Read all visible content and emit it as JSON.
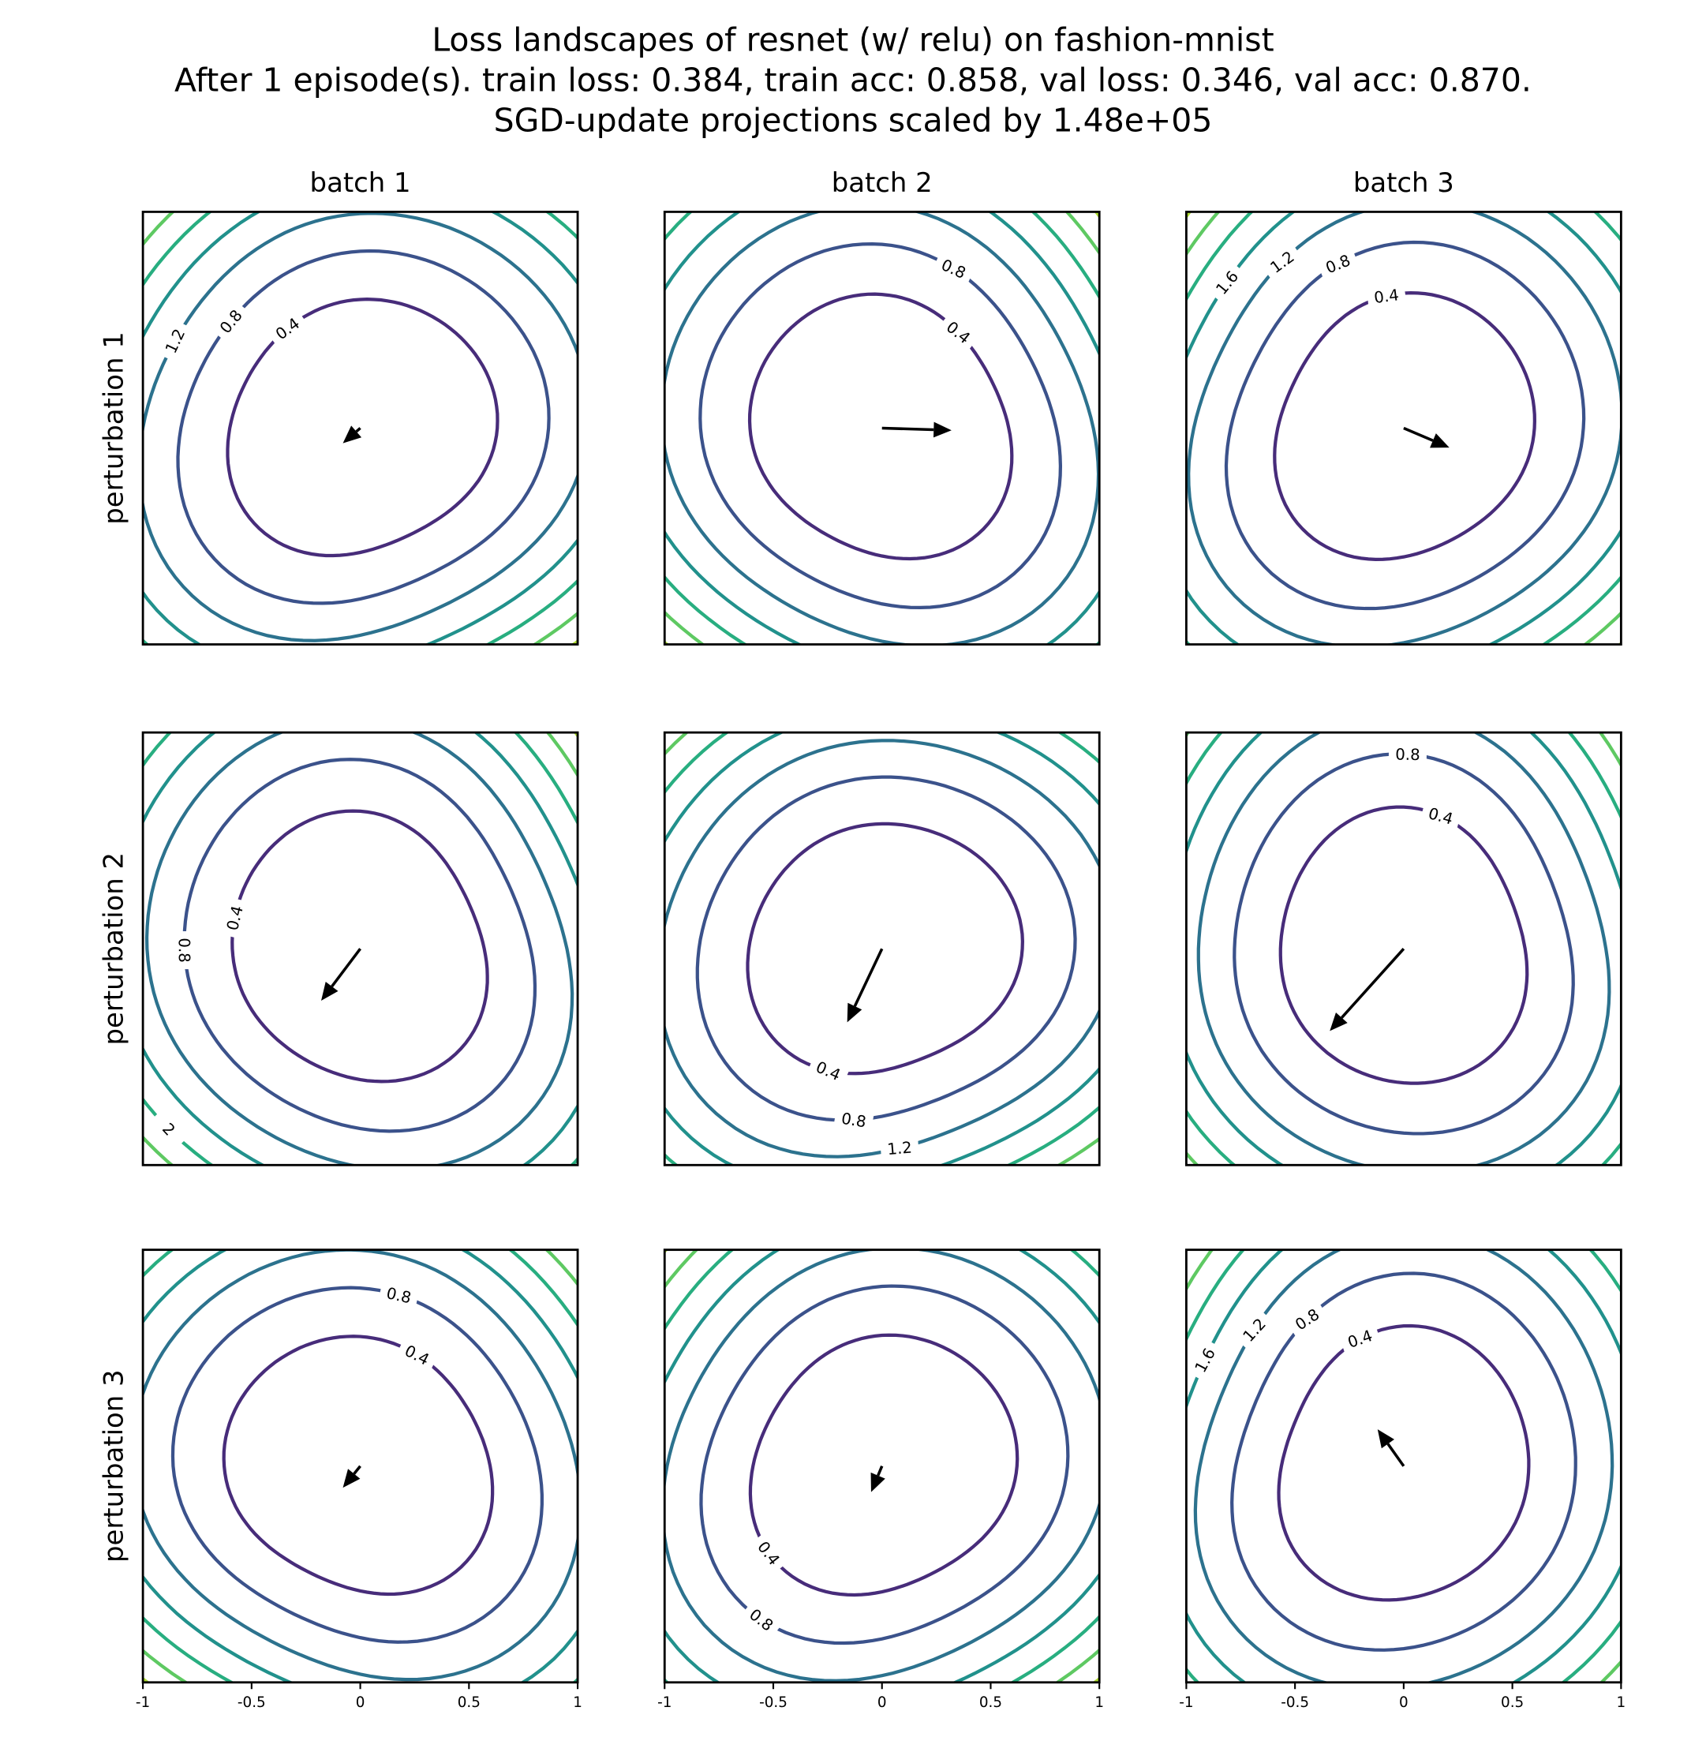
{
  "chart_data": {
    "type": "contour",
    "title": [
      "Loss landscapes of resnet (w/ relu) on fashion-mnist",
      "After 1 episode(s). train loss: 0.384, train acc: 0.858, val loss: 0.346, val acc: 0.870.",
      "SGD-update projections scaled by 1.48e+05"
    ],
    "columns": [
      "batch 1",
      "batch 2",
      "batch 3"
    ],
    "rows": [
      "perturbation 1",
      "perturbation 2",
      "perturbation 3"
    ],
    "xlim": [
      -1,
      1
    ],
    "ylim": [
      -1,
      1
    ],
    "xticks": [
      -1,
      -0.5,
      0,
      0.5,
      1
    ],
    "levels": [
      0.4,
      0.8,
      1.2,
      1.6,
      2.0,
      2.4,
      2.8
    ],
    "level_colors": [
      "#472c7a",
      "#3b528b",
      "#2c728e",
      "#21918c",
      "#28ae80",
      "#5ec962",
      "#addc30"
    ],
    "arrow_color": "#000000",
    "panels": [
      {
        "arrow_dx": -0.08,
        "arrow_dy": -0.07
      },
      {
        "arrow_dx": 0.32,
        "arrow_dy": -0.01
      },
      {
        "arrow_dx": 0.21,
        "arrow_dy": -0.09
      },
      {
        "arrow_dx": -0.18,
        "arrow_dy": -0.24
      },
      {
        "arrow_dx": -0.16,
        "arrow_dy": -0.34
      },
      {
        "arrow_dx": -0.34,
        "arrow_dy": -0.38
      },
      {
        "arrow_dx": -0.08,
        "arrow_dy": -0.1
      },
      {
        "arrow_dx": -0.05,
        "arrow_dy": -0.12
      },
      {
        "arrow_dx": -0.12,
        "arrow_dy": 0.17
      }
    ]
  }
}
